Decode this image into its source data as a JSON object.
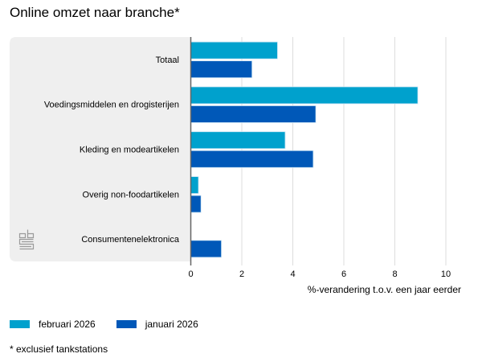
{
  "chart_data": {
    "type": "bar",
    "orientation": "horizontal",
    "title": "Online omzet naar branche*",
    "xlabel": "%-verandering t.o.v. een jaar eerder",
    "ylabel": "",
    "xlim": [
      0,
      10
    ],
    "xticks": [
      "0",
      "2",
      "4",
      "6",
      "8",
      "10"
    ],
    "grid": true,
    "categories": [
      "Totaal",
      "Voedingsmiddelen en drogisterijen",
      "Kleding en modeartikelen",
      "Overig non-foodartikelen",
      "Consumentenelektronica"
    ],
    "series": [
      {
        "name": "februari 2026",
        "color": "#00a1cd",
        "values": [
          3.4,
          8.9,
          3.7,
          0.3,
          0.0
        ]
      },
      {
        "name": "januari 2026",
        "color": "#0058b8",
        "values": [
          2.4,
          4.9,
          4.8,
          0.4,
          1.2
        ]
      }
    ],
    "legend_position": "bottom-left",
    "footnote": "* exclusief tankstations"
  },
  "logo": "cbs-logo-icon"
}
